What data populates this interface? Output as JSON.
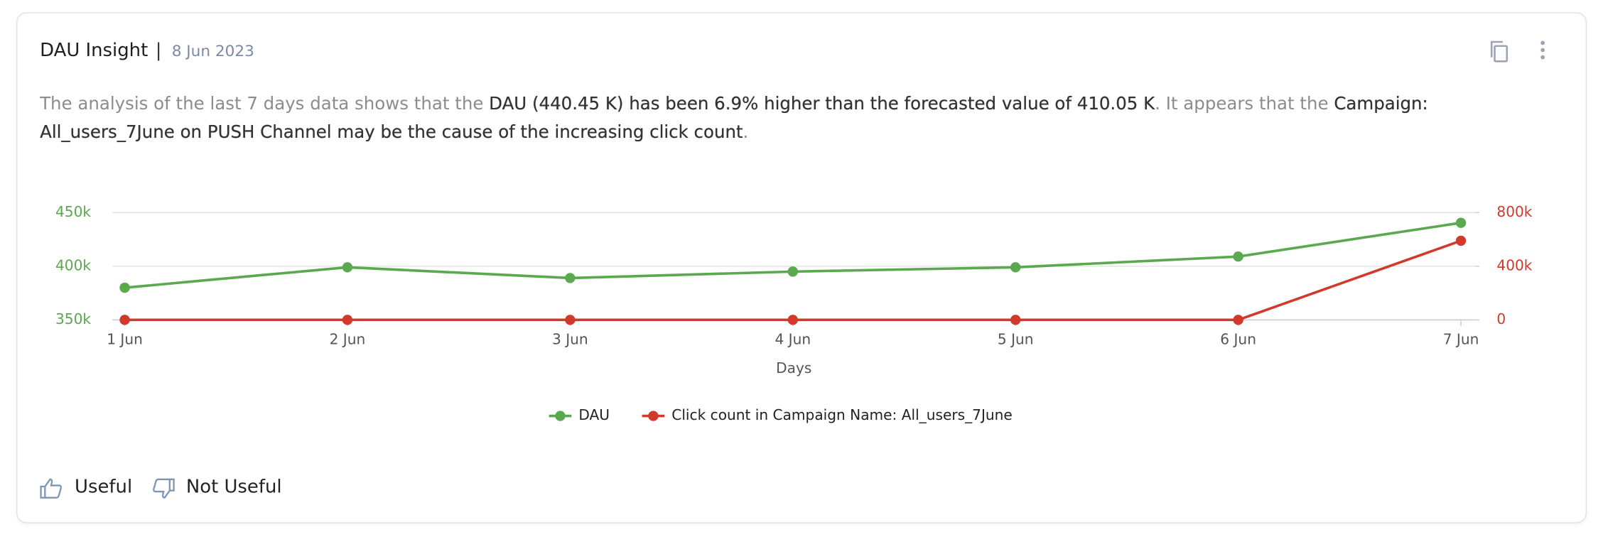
{
  "header": {
    "title": "DAU Insight",
    "separator": "|",
    "date": "8 Jun 2023"
  },
  "summary": [
    {
      "text": "The analysis of the last 7 days data shows that the ",
      "bold": false
    },
    {
      "text": "DAU (440.45 K) has been 6.9% higher than the forecasted value of 410.05 K",
      "bold": true
    },
    {
      "text": ". It appears that the ",
      "bold": false
    },
    {
      "text": "Campaign: All_users_7June on PUSH Channel may be the cause of the increasing click count",
      "bold": true
    },
    {
      "text": ".",
      "bold": false
    }
  ],
  "chart_data": {
    "type": "line",
    "x_label": "Days",
    "categories": [
      "1 Jun",
      "2 Jun",
      "3 Jun",
      "4 Jun",
      "5 Jun",
      "6 Jun",
      "7 Jun"
    ],
    "series": [
      {
        "name": "DAU",
        "color": "#5aa94f",
        "axis": "y",
        "values": [
          380000,
          399000,
          389000,
          395000,
          399000,
          409000,
          440450
        ]
      },
      {
        "name": "Click count in Campaign Name: All_users_7June",
        "color": "#d0392b",
        "axis": "y2",
        "values": [
          0,
          0,
          0,
          0,
          0,
          0,
          590000
        ]
      }
    ],
    "ylim": [
      350000,
      450000
    ],
    "yticks": [
      {
        "value": 350000,
        "label": "350k"
      },
      {
        "value": 400000,
        "label": "400k"
      },
      {
        "value": 450000,
        "label": "450k"
      }
    ],
    "y2lim": [
      0,
      800000
    ],
    "y2ticks": [
      0,
      {
        "value": 400000,
        "label": "400k"
      },
      {
        "value": 800000,
        "label": "800k"
      }
    ],
    "grid": true,
    "legend": "bottom"
  },
  "footer": {
    "useful": "Useful",
    "not_useful": "Not Useful"
  }
}
